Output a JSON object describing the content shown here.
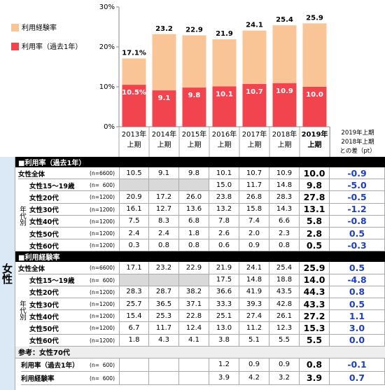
{
  "chart_data": {
    "type": "bar",
    "overlap": true,
    "categories": [
      "2013年\n上期",
      "2014年\n上期",
      "2015年\n上期",
      "2016年\n上期",
      "2017年\n上期",
      "2018年\n上期",
      "2019年\n上期"
    ],
    "series": [
      {
        "name": "利用経験率",
        "color": "#f9c597",
        "values": [
          17.1,
          23.2,
          22.9,
          21.9,
          24.1,
          25.4,
          25.9
        ],
        "value_labels": [
          "17.1%",
          "23.2",
          "22.9",
          "21.9",
          "24.1",
          "25.4",
          "25.9"
        ]
      },
      {
        "name": "利用率（過去1年）",
        "color": "#f2444f",
        "values": [
          10.5,
          9.1,
          9.8,
          10.1,
          10.7,
          10.9,
          10.0
        ],
        "value_labels": [
          "10.5%",
          "9.1",
          "9.8",
          "10.1",
          "10.7",
          "10.9",
          "10.0"
        ]
      }
    ],
    "ylim": [
      0,
      30
    ],
    "yticks": [
      {
        "value": 0,
        "label": "0%"
      },
      {
        "value": 10,
        "label": "10%"
      },
      {
        "value": 20,
        "label": "20%"
      },
      {
        "value": 30,
        "label": "30%"
      }
    ],
    "legend": "upper left"
  },
  "table": {
    "diff_header": "2019年上期\n2018年上期\nとの差（pt）",
    "group_label": "女性",
    "sections": [
      {
        "title": "■利用率（過去1年）",
        "age_label": "年代別",
        "rows": [
          {
            "label": "女性全体",
            "n": "(n=6600)",
            "values": [
              "10.5",
              "9.1",
              "9.8",
              "10.1",
              "10.7",
              "10.9",
              "10.0"
            ],
            "diff": "-0.9"
          },
          {
            "label": "女性15～19歳",
            "n": "(n=  600)",
            "values": [
              null,
              null,
              null,
              "15.0",
              "11.7",
              "14.8",
              "9.8"
            ],
            "diff": "-5.0",
            "blank_shaded": true
          },
          {
            "label": "女性20代",
            "n": "(n=1200)",
            "values": [
              "20.9",
              "17.2",
              "26.0",
              "23.8",
              "26.8",
              "28.3",
              "27.8"
            ],
            "diff": "-0.5"
          },
          {
            "label": "女性30代",
            "n": "(n=1200)",
            "values": [
              "16.1",
              "12.7",
              "13.6",
              "13.2",
              "15.8",
              "14.3",
              "13.1"
            ],
            "diff": "-1.2"
          },
          {
            "label": "女性40代",
            "n": "(n=1200)",
            "values": [
              "7.5",
              "8.3",
              "6.8",
              "7.8",
              "7.4",
              "6.6",
              "5.8"
            ],
            "diff": "-0.8"
          },
          {
            "label": "女性50代",
            "n": "(n=1200)",
            "values": [
              "2.4",
              "2.4",
              "1.8",
              "2.6",
              "2.0",
              "2.3",
              "2.8"
            ],
            "diff": "0.5"
          },
          {
            "label": "女性60代",
            "n": "(n=1200)",
            "values": [
              "0.3",
              "0.8",
              "0.8",
              "0.6",
              "0.9",
              "0.8",
              "0.5"
            ],
            "diff": "-0.3"
          }
        ]
      },
      {
        "title": "■利用経験率",
        "age_label": "年代別",
        "rows": [
          {
            "label": "女性全体",
            "n": "(n=6600)",
            "values": [
              "17.1",
              "23.2",
              "22.9",
              "21.9",
              "24.1",
              "25.4",
              "25.9"
            ],
            "diff": "0.5"
          },
          {
            "label": "女性15～19歳",
            "n": "(n=  600)",
            "values": [
              null,
              null,
              null,
              "17.5",
              "14.8",
              "18.8",
              "14.0"
            ],
            "diff": "-4.8",
            "blank_shaded": true
          },
          {
            "label": "女性20代",
            "n": "(n=1200)",
            "values": [
              "28.3",
              "28.7",
              "38.2",
              "36.6",
              "41.9",
              "43.5",
              "44.3"
            ],
            "diff": "0.8"
          },
          {
            "label": "女性30代",
            "n": "(n=1200)",
            "values": [
              "25.7",
              "36.5",
              "37.1",
              "33.3",
              "39.3",
              "42.8",
              "43.3"
            ],
            "diff": "0.5"
          },
          {
            "label": "女性40代",
            "n": "(n=1200)",
            "values": [
              "15.4",
              "25.3",
              "22.8",
              "25.1",
              "27.4",
              "26.1",
              "27.2"
            ],
            "diff": "1.1"
          },
          {
            "label": "女性50代",
            "n": "(n=1200)",
            "values": [
              "6.7",
              "11.7",
              "12.4",
              "13.0",
              "11.2",
              "12.3",
              "15.3"
            ],
            "diff": "3.0"
          },
          {
            "label": "女性60代",
            "n": "(n=1200)",
            "values": [
              "1.8",
              "4.3",
              "4.1",
              "3.8",
              "5.1",
              "5.5",
              "5.5"
            ],
            "diff": "0.0"
          }
        ]
      }
    ],
    "reference": {
      "title": "参考：女性70代",
      "rows": [
        {
          "label": "利用率（過去1年）",
          "n": "(n=  600)",
          "values": [
            null,
            null,
            null,
            "1.2",
            "0.9",
            "0.9",
            "0.8"
          ],
          "diff": "-0.1"
        },
        {
          "label": "利用経験率",
          "n": "(n=  600)",
          "values": [
            null,
            null,
            null,
            "3.9",
            "4.2",
            "3.2",
            "3.9"
          ],
          "diff": "0.7"
        }
      ]
    }
  }
}
